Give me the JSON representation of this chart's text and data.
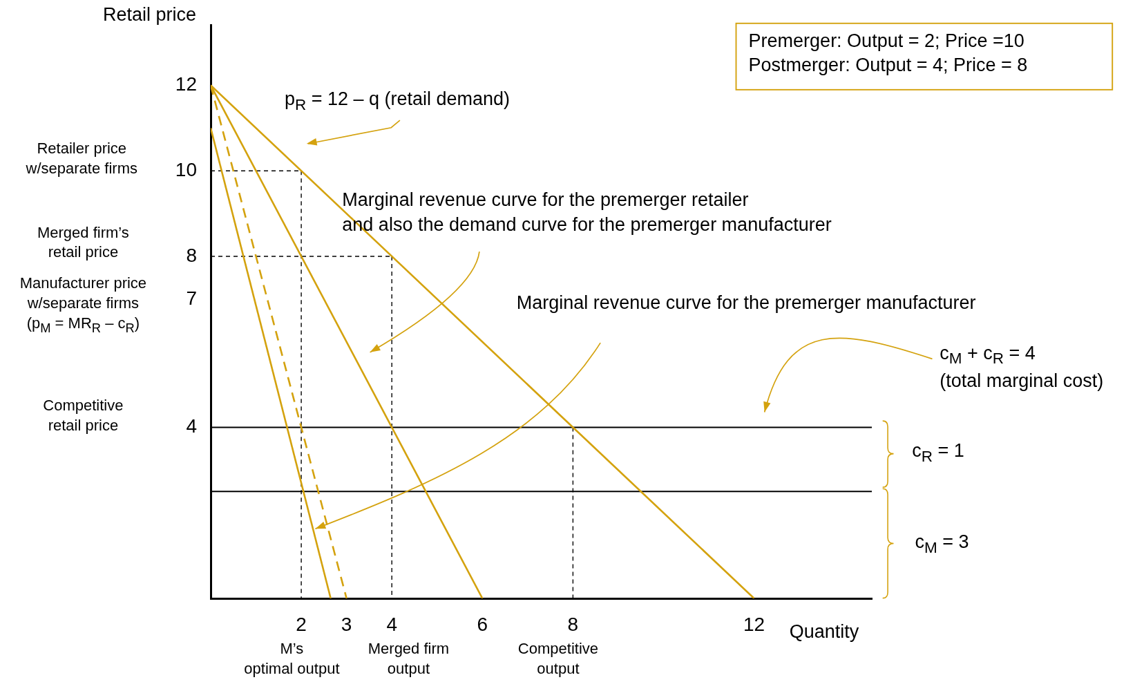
{
  "chart_data": {
    "type": "line",
    "xlabel": "Quantity",
    "ylabel": "Retail price",
    "xlim": [
      0,
      14.6
    ],
    "ylim": [
      0,
      13.4
    ],
    "xticks": [
      2,
      3,
      4,
      6,
      8,
      12
    ],
    "yticks": [
      4,
      7,
      8,
      10,
      12
    ],
    "marker": "none",
    "series": [
      {
        "color": "#d4a20e",
        "x": [
          0,
          12
        ],
        "values": [
          12,
          0
        ]
      },
      {
        "color": "#d4a20e",
        "x": [
          0,
          6
        ],
        "values": [
          12,
          0
        ]
      },
      {
        "color": "#d4a20e",
        "x": [
          0,
          3
        ],
        "values": [
          12,
          0
        ],
        "line_style": "dashed"
      },
      {
        "color": "#d4a20e",
        "x": [
          0,
          2.65
        ],
        "values": [
          11,
          0
        ]
      },
      {
        "color": "#000000",
        "x": [
          0,
          14.6
        ],
        "values": [
          4,
          4
        ]
      },
      {
        "color": "#000000",
        "x": [
          0,
          14.6
        ],
        "values": [
          2.5,
          2.5
        ]
      },
      {
        "color": "#000000",
        "x": [
          0,
          2
        ],
        "values": [
          10,
          10
        ],
        "line_style": "dashed"
      },
      {
        "color": "#000000",
        "x": [
          0,
          4
        ],
        "values": [
          8,
          8
        ],
        "line_style": "dashed"
      },
      {
        "color": "#000000",
        "x": [
          2,
          2
        ],
        "values": [
          10,
          0
        ],
        "line_style": "dashed"
      },
      {
        "color": "#000000",
        "x": [
          4,
          4
        ],
        "values": [
          8,
          0
        ],
        "line_style": "dashed"
      },
      {
        "color": "#000000",
        "x": [
          8,
          8
        ],
        "values": [
          4,
          0
        ],
        "line_style": "dashed"
      }
    ],
    "annotations": [
      "p$_{R}$ = 12 – q (retail demand)",
      "Marginal revenue curve for the premerger retailer\nand also the demand curve for the premerger manufacturer",
      "Marginal revenue curve for the premerger manufacturer",
      "c$_{M}$ + c$_{R}$ = 4\n(total marginal cost)",
      "c$_{R}$ = 1",
      "c$_{M}$ = 3",
      "Premerger: Output = 2; Price =10\nPostmerger: Output = 4; Price = 8",
      "Retailer price\nw/separate firms",
      "Merged firm’s\nretail price",
      "Manufacturer price\nw/separate firms\n(p$_{M}$ = MR$_{R}$ – c$_{R}$)",
      "Competitive\nretail price",
      "M’s\noptimal output",
      "Merged firm\noutput",
      "Competitive\noutput"
    ]
  }
}
